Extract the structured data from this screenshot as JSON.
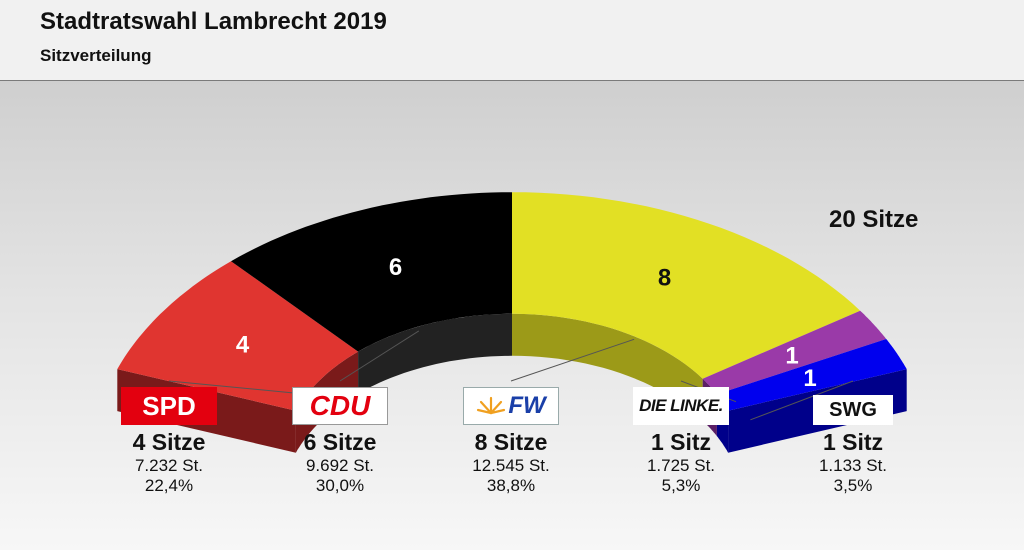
{
  "title": "Stadtratswahl Lambrecht 2019",
  "subtitle": "Sitzverteilung",
  "chart_data": {
    "type": "pie",
    "variant": "3d-half-ring-seat-distribution",
    "title": "Stadtratswahl Lambrecht 2019",
    "subtitle": "Sitzverteilung",
    "total_label": "20 Sitze",
    "total_seats": 20,
    "series": [
      {
        "party": "SPD",
        "seats": 4,
        "seat_label": "4",
        "seats_text": "4 Sitze",
        "votes": "7.232 St.",
        "percent": "22,4%",
        "color": "#e03530",
        "side_color": "#7a1a1a"
      },
      {
        "party": "CDU",
        "seats": 6,
        "seat_label": "6",
        "seats_text": "6 Sitze",
        "votes": "9.692 St.",
        "percent": "30,0%",
        "color": "#000000",
        "side_color": "#222222"
      },
      {
        "party": "FW",
        "seats": 8,
        "seat_label": "8",
        "seats_text": "8 Sitze",
        "votes": "12.545 St.",
        "percent": "38,8%",
        "color": "#e2e024",
        "side_color": "#9c9a18"
      },
      {
        "party": "DIE LINKE.",
        "seats": 1,
        "seat_label": "1",
        "seats_text": "1 Sitz",
        "votes": "1.725 St.",
        "percent": "5,3%",
        "color": "#9a3aa8",
        "side_color": "#5b1f66"
      },
      {
        "party": "SWG",
        "seats": 1,
        "seat_label": "1",
        "seats_text": "1 Sitz",
        "votes": "1.133 St.",
        "percent": "3,5%",
        "color": "#0000ee",
        "side_color": "#00008a"
      }
    ]
  },
  "logos": {
    "spd": "SPD",
    "cdu": "CDU",
    "fw": "FW",
    "linke": "DIE LINKE.",
    "swg": "SWG"
  }
}
